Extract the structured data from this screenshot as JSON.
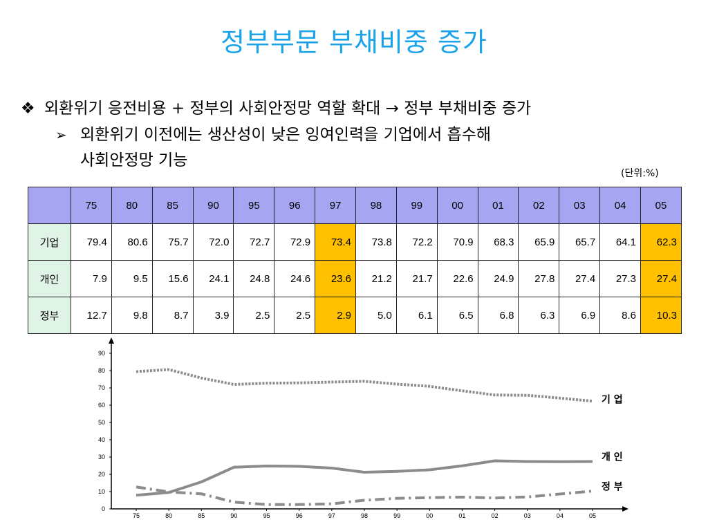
{
  "title": "정부부문 부채비중 증가",
  "bullet1": {
    "mark": "❖",
    "text": "외환위기 응전비용 + 정부의 사회안정망 역할 확대 → 정부 부채비중 증가"
  },
  "bullet2": {
    "mark": "➢",
    "line1": "외환위기 이전에는 생산성이 낮은 잉여인력을 기업에서 흡수해",
    "line2": "사회안정망 기능"
  },
  "unit": "(단위:%)",
  "table": {
    "years": [
      "75",
      "80",
      "85",
      "90",
      "95",
      "96",
      "97",
      "98",
      "99",
      "00",
      "01",
      "02",
      "03",
      "04",
      "05"
    ],
    "rows": [
      {
        "label": "기업",
        "values": [
          "79.4",
          "80.6",
          "75.7",
          "72.0",
          "72.7",
          "72.9",
          "73.4",
          "73.8",
          "72.2",
          "70.9",
          "68.3",
          "65.9",
          "65.7",
          "64.1",
          "62.3"
        ]
      },
      {
        "label": "개인",
        "values": [
          "7.9",
          "9.5",
          "15.6",
          "24.1",
          "24.8",
          "24.6",
          "23.6",
          "21.2",
          "21.7",
          "22.6",
          "24.9",
          "27.8",
          "27.4",
          "27.3",
          "27.4"
        ]
      },
      {
        "label": "정부",
        "values": [
          "12.7",
          "9.8",
          "8.7",
          "3.9",
          "2.5",
          "2.5",
          "2.9",
          "5.0",
          "6.1",
          "6.5",
          "6.8",
          "6.3",
          "6.9",
          "8.6",
          "10.3"
        ]
      }
    ],
    "highlight_columns": [
      "97",
      "05"
    ],
    "colors": {
      "header": "#a5a5f2",
      "row_label": "#dff3e6",
      "highlight": "#ffc000"
    }
  },
  "chart_data": {
    "type": "line",
    "x": [
      "75",
      "80",
      "85",
      "90",
      "95",
      "96",
      "97",
      "98",
      "99",
      "00",
      "01",
      "02",
      "03",
      "04",
      "05"
    ],
    "ylim": [
      0,
      90
    ],
    "yticks": [
      "0",
      "10",
      "20",
      "30",
      "40",
      "50",
      "60",
      "70",
      "80",
      "90"
    ],
    "series": [
      {
        "name": "기 업",
        "style": "dotted",
        "values": [
          79.4,
          80.6,
          75.7,
          72.0,
          72.7,
          72.9,
          73.4,
          73.8,
          72.2,
          70.9,
          68.3,
          65.9,
          65.7,
          64.1,
          62.3
        ]
      },
      {
        "name": "개 인",
        "style": "solid",
        "values": [
          7.9,
          9.5,
          15.6,
          24.1,
          24.8,
          24.6,
          23.6,
          21.2,
          21.7,
          22.6,
          24.9,
          27.8,
          27.4,
          27.3,
          27.4
        ]
      },
      {
        "name": "정 부",
        "style": "dashdot",
        "values": [
          12.7,
          9.8,
          8.7,
          3.9,
          2.5,
          2.5,
          2.9,
          5.0,
          6.1,
          6.5,
          6.8,
          6.3,
          6.9,
          8.6,
          10.3
        ]
      }
    ],
    "line_color": "#8c8c8c"
  }
}
